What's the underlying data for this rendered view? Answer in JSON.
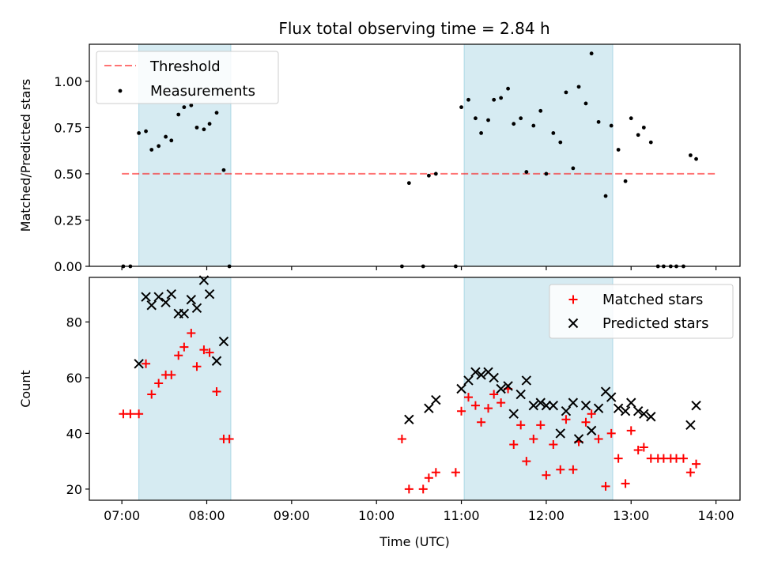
{
  "title": "Flux total observing time = 2.84 h",
  "colors": {
    "band": "#add8e6",
    "threshold": "#ff0000",
    "measurement": "#000000",
    "matched": "#ff0000",
    "predicted": "#000000"
  },
  "chart_data": [
    {
      "type": "scatter",
      "panel": "top",
      "ylabel": "Matched/Predicted stars",
      "xlabel": "",
      "xlim": [
        "06:37",
        "14:17"
      ],
      "ylim": [
        0,
        1.2
      ],
      "yticks": [
        0,
        0.25,
        0.5,
        0.75,
        1.0
      ],
      "ytick_labels": [
        "0.00",
        "0.25",
        "0.50",
        "0.75",
        "1.00"
      ],
      "xticks": [
        "07:00",
        "08:00",
        "09:00",
        "10:00",
        "11:00",
        "12:00",
        "13:00",
        "14:00"
      ],
      "shaded_intervals": [
        [
          "07:12",
          "08:17"
        ],
        [
          "11:02",
          "12:47"
        ]
      ],
      "threshold": {
        "name": "Threshold",
        "value": 0.5,
        "x_range": [
          "07:00",
          "14:00"
        ]
      },
      "legend": {
        "position": "top-left",
        "entries": [
          "Threshold",
          "Measurements"
        ]
      },
      "series": [
        {
          "name": "Measurements",
          "marker": "dot",
          "points": [
            [
              "07:01",
              0.0
            ],
            [
              "07:06",
              0.0
            ],
            [
              "07:12",
              0.72
            ],
            [
              "07:17",
              0.73
            ],
            [
              "07:21",
              0.63
            ],
            [
              "07:26",
              0.65
            ],
            [
              "07:31",
              0.7
            ],
            [
              "07:35",
              0.68
            ],
            [
              "07:40",
              0.82
            ],
            [
              "07:44",
              0.86
            ],
            [
              "07:49",
              0.87
            ],
            [
              "07:53",
              0.75
            ],
            [
              "07:58",
              0.74
            ],
            [
              "08:02",
              0.77
            ],
            [
              "08:07",
              0.83
            ],
            [
              "08:12",
              0.52
            ],
            [
              "08:16",
              0.0
            ],
            [
              "10:18",
              0.0
            ],
            [
              "10:23",
              0.45
            ],
            [
              "10:33",
              0.0
            ],
            [
              "10:37",
              0.49
            ],
            [
              "10:42",
              0.5
            ],
            [
              "10:56",
              0.0
            ],
            [
              "11:00",
              0.86
            ],
            [
              "11:05",
              0.9
            ],
            [
              "11:10",
              0.8
            ],
            [
              "11:14",
              0.72
            ],
            [
              "11:19",
              0.79
            ],
            [
              "11:23",
              0.9
            ],
            [
              "11:28",
              0.91
            ],
            [
              "11:33",
              0.96
            ],
            [
              "11:37",
              0.77
            ],
            [
              "11:42",
              0.8
            ],
            [
              "11:46",
              0.51
            ],
            [
              "11:51",
              0.76
            ],
            [
              "11:56",
              0.84
            ],
            [
              "12:00",
              0.5
            ],
            [
              "12:05",
              0.72
            ],
            [
              "12:10",
              0.67
            ],
            [
              "12:14",
              0.94
            ],
            [
              "12:19",
              0.53
            ],
            [
              "12:23",
              0.97
            ],
            [
              "12:28",
              0.88
            ],
            [
              "12:32",
              1.15
            ],
            [
              "12:37",
              0.78
            ],
            [
              "12:42",
              0.38
            ],
            [
              "12:46",
              0.76
            ],
            [
              "12:51",
              0.63
            ],
            [
              "12:56",
              0.46
            ],
            [
              "13:00",
              0.8
            ],
            [
              "13:05",
              0.71
            ],
            [
              "13:09",
              0.75
            ],
            [
              "13:14",
              0.67
            ],
            [
              "13:19",
              0.0
            ],
            [
              "13:23",
              0.0
            ],
            [
              "13:28",
              0.0
            ],
            [
              "13:32",
              0.0
            ],
            [
              "13:37",
              0.0
            ],
            [
              "13:42",
              0.6
            ],
            [
              "13:46",
              0.58
            ]
          ]
        }
      ]
    },
    {
      "type": "scatter",
      "panel": "bottom",
      "ylabel": "Count",
      "xlabel": "Time (UTC)",
      "xlim": [
        "06:37",
        "14:17"
      ],
      "ylim": [
        16,
        96
      ],
      "yticks": [
        20,
        40,
        60,
        80
      ],
      "ytick_labels": [
        "20",
        "40",
        "60",
        "80"
      ],
      "xticks": [
        "07:00",
        "08:00",
        "09:00",
        "10:00",
        "11:00",
        "12:00",
        "13:00",
        "14:00"
      ],
      "xtick_labels": [
        "07:00",
        "08:00",
        "09:00",
        "10:00",
        "11:00",
        "12:00",
        "13:00",
        "14:00"
      ],
      "shaded_intervals": [
        [
          "07:12",
          "08:17"
        ],
        [
          "11:02",
          "12:47"
        ]
      ],
      "legend": {
        "position": "top-right",
        "entries": [
          "Matched stars",
          "Predicted stars"
        ]
      },
      "series": [
        {
          "name": "Matched stars",
          "marker": "plus",
          "points": [
            [
              "07:01",
              47
            ],
            [
              "07:06",
              47
            ],
            [
              "07:12",
              47
            ],
            [
              "07:17",
              65
            ],
            [
              "07:21",
              54
            ],
            [
              "07:26",
              58
            ],
            [
              "07:31",
              61
            ],
            [
              "07:35",
              61
            ],
            [
              "07:40",
              68
            ],
            [
              "07:44",
              71
            ],
            [
              "07:49",
              76
            ],
            [
              "07:53",
              64
            ],
            [
              "07:58",
              70
            ],
            [
              "08:02",
              69
            ],
            [
              "08:07",
              55
            ],
            [
              "08:12",
              38
            ],
            [
              "08:16",
              38
            ],
            [
              "10:18",
              38
            ],
            [
              "10:23",
              20
            ],
            [
              "10:33",
              20
            ],
            [
              "10:37",
              24
            ],
            [
              "10:42",
              26
            ],
            [
              "10:56",
              26
            ],
            [
              "11:00",
              48
            ],
            [
              "11:05",
              53
            ],
            [
              "11:10",
              50
            ],
            [
              "11:14",
              44
            ],
            [
              "11:19",
              49
            ],
            [
              "11:23",
              54
            ],
            [
              "11:28",
              51
            ],
            [
              "11:33",
              56
            ],
            [
              "11:37",
              36
            ],
            [
              "11:42",
              43
            ],
            [
              "11:46",
              30
            ],
            [
              "11:51",
              38
            ],
            [
              "11:56",
              43
            ],
            [
              "12:00",
              25
            ],
            [
              "12:05",
              36
            ],
            [
              "12:10",
              27
            ],
            [
              "12:14",
              45
            ],
            [
              "12:19",
              27
            ],
            [
              "12:23",
              37
            ],
            [
              "12:28",
              44
            ],
            [
              "12:32",
              47
            ],
            [
              "12:37",
              38
            ],
            [
              "12:42",
              21
            ],
            [
              "12:46",
              40
            ],
            [
              "12:51",
              31
            ],
            [
              "12:56",
              22
            ],
            [
              "13:00",
              41
            ],
            [
              "13:05",
              34
            ],
            [
              "13:09",
              35
            ],
            [
              "13:14",
              31
            ],
            [
              "13:19",
              31
            ],
            [
              "13:23",
              31
            ],
            [
              "13:28",
              31
            ],
            [
              "13:32",
              31
            ],
            [
              "13:37",
              31
            ],
            [
              "13:42",
              26
            ],
            [
              "13:46",
              29
            ]
          ]
        },
        {
          "name": "Predicted stars",
          "marker": "x",
          "points": [
            [
              "07:12",
              65
            ],
            [
              "07:17",
              89
            ],
            [
              "07:21",
              86
            ],
            [
              "07:26",
              89
            ],
            [
              "07:31",
              87
            ],
            [
              "07:35",
              90
            ],
            [
              "07:40",
              83
            ],
            [
              "07:44",
              83
            ],
            [
              "07:49",
              88
            ],
            [
              "07:53",
              85
            ],
            [
              "07:58",
              95
            ],
            [
              "08:02",
              90
            ],
            [
              "08:07",
              66
            ],
            [
              "08:12",
              73
            ],
            [
              "10:23",
              45
            ],
            [
              "10:37",
              49
            ],
            [
              "10:42",
              52
            ],
            [
              "11:00",
              56
            ],
            [
              "11:05",
              59
            ],
            [
              "11:10",
              62
            ],
            [
              "11:14",
              61
            ],
            [
              "11:19",
              62
            ],
            [
              "11:23",
              60
            ],
            [
              "11:28",
              56
            ],
            [
              "11:33",
              57
            ],
            [
              "11:37",
              47
            ],
            [
              "11:42",
              54
            ],
            [
              "11:46",
              59
            ],
            [
              "11:51",
              50
            ],
            [
              "11:56",
              51
            ],
            [
              "12:00",
              50
            ],
            [
              "12:05",
              50
            ],
            [
              "12:10",
              40
            ],
            [
              "12:14",
              48
            ],
            [
              "12:19",
              51
            ],
            [
              "12:23",
              38
            ],
            [
              "12:28",
              50
            ],
            [
              "12:32",
              41
            ],
            [
              "12:37",
              49
            ],
            [
              "12:42",
              55
            ],
            [
              "12:46",
              53
            ],
            [
              "12:51",
              49
            ],
            [
              "12:56",
              48
            ],
            [
              "13:00",
              51
            ],
            [
              "13:05",
              48
            ],
            [
              "13:09",
              47
            ],
            [
              "13:14",
              46
            ],
            [
              "13:42",
              43
            ],
            [
              "13:46",
              50
            ]
          ]
        }
      ]
    }
  ]
}
